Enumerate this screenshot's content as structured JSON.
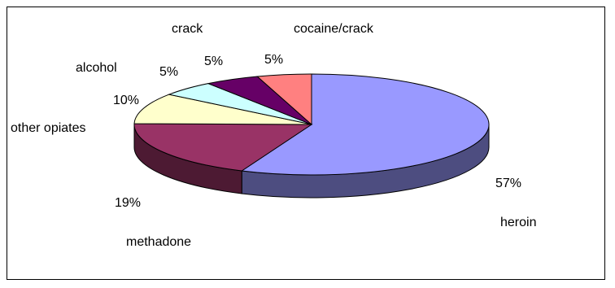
{
  "chart_data": {
    "type": "pie",
    "style": "3d-exploded-none",
    "slices": [
      {
        "name": "heroin",
        "value": 57,
        "label": "57%",
        "color": "#9999FF"
      },
      {
        "name": "methadone",
        "value": 19,
        "label": "19%",
        "color": "#993366"
      },
      {
        "name": "other opiates",
        "value": 10,
        "label": "10%",
        "color": "#FFFFCC"
      },
      {
        "name": "alcohol",
        "value": 5,
        "label": "5%",
        "color": "#CCFFFF"
      },
      {
        "name": "crack",
        "value": 5,
        "label": "5%",
        "color": "#660066"
      },
      {
        "name": "cocaine/crack",
        "value": 5,
        "label": "5%",
        "color": "#FF8080"
      }
    ],
    "title": "",
    "legend": "none"
  }
}
